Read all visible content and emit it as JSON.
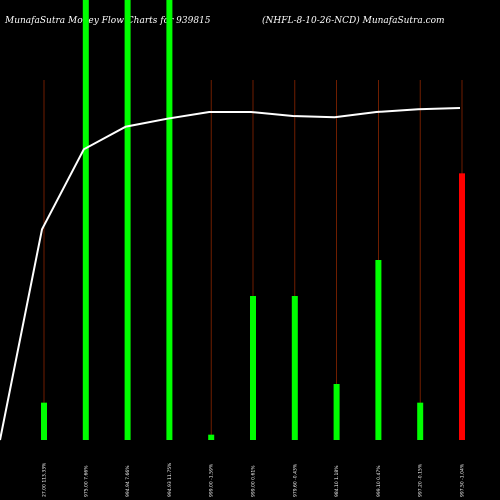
{
  "header": {
    "title_left": "MunafaSutra  Money Flow  Charts for 939815",
    "title_right": "(NHFL-8-10-26-NCD) MunafaSutra.com"
  },
  "colors": {
    "background": "#000000",
    "up_bar": "#00ff00",
    "down_bar": "#ff0000",
    "guide_line": "#8b2500",
    "flow_line": "#ffffff"
  },
  "chart_data": {
    "type": "bar",
    "title": "MunafaSutra  Money Flow  Charts for 939815",
    "subtitle": "(NHFL-8-10-26-NCD) MunafaSutra.com",
    "categories": [
      "27.00 113.33%",
      "975.00 7.66%",
      "994.94 7.66%",
      "994.93 11.75%",
      "999.00 -1.59%",
      "999.00 0.61%",
      "979.60 -0.43%",
      "984.10 1.18%",
      "999.10 0.47%",
      "997.20 -0.15%",
      "997.50 -1.04%"
    ],
    "values": [
      28,
      330,
      330,
      330,
      4,
      108,
      108,
      42,
      135,
      28,
      200
    ],
    "bar_colors": [
      "green",
      "green",
      "green",
      "green",
      "green",
      "green",
      "green",
      "green",
      "green",
      "green",
      "red"
    ],
    "ylim": [
      0,
      330
    ],
    "line": {
      "name": "",
      "values": [
        158,
        218,
        235,
        241,
        246,
        246,
        243,
        242,
        246,
        248,
        249
      ],
      "start_value": 0
    },
    "xlabel": "",
    "ylabel": "",
    "grid": false,
    "legend": "none"
  }
}
